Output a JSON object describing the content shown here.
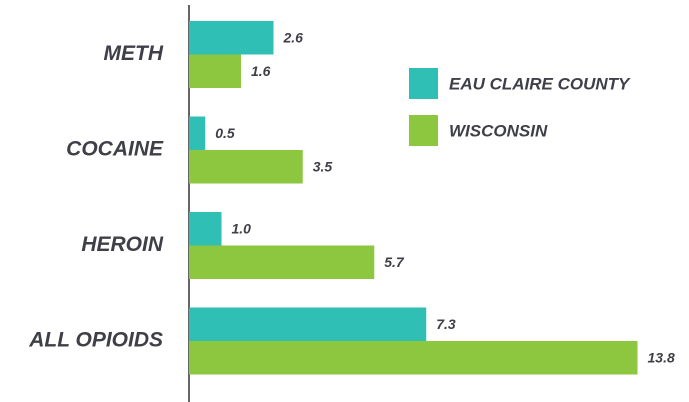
{
  "chart_data": {
    "type": "bar",
    "orientation": "horizontal",
    "categories": [
      "METH",
      "COCAINE",
      "HEROIN",
      "ALL OPIOIDS"
    ],
    "series": [
      {
        "name": "EAU CLAIRE COUNTY",
        "color": "#2fbfb4",
        "values": [
          2.6,
          0.5,
          1,
          7.3
        ],
        "value_labels": [
          "2.6",
          "0.5",
          "1.0",
          "7.3"
        ]
      },
      {
        "name": "WISCONSIN",
        "color": "#8dc63f",
        "values": [
          1.6,
          3.5,
          5.7,
          13.8
        ],
        "value_labels": [
          "1.6",
          "3.5",
          "5.7",
          "13.8"
        ]
      }
    ]
  }
}
